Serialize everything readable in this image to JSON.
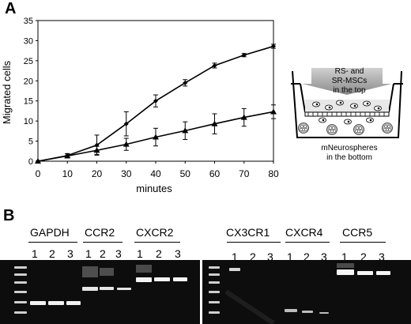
{
  "panel_a": {
    "label": "A"
  },
  "panel_b": {
    "label": "B"
  },
  "chart_data": {
    "type": "line",
    "xlabel": "minutes",
    "ylabel": "Migrated cells",
    "x": [
      0,
      10,
      20,
      30,
      40,
      50,
      60,
      70,
      80
    ],
    "xlim": [
      0,
      80
    ],
    "ylim": [
      0,
      35
    ],
    "xticks": [
      0,
      10,
      20,
      30,
      40,
      50,
      60,
      70,
      80
    ],
    "yticks": [
      0,
      5,
      10,
      15,
      20,
      25,
      30,
      35
    ],
    "grid": false,
    "series": [
      {
        "marker": "diamond",
        "values": [
          0,
          1.4,
          4.0,
          9.3,
          15.0,
          19.5,
          23.8,
          26.4,
          28.6
        ],
        "errors": [
          0,
          0.5,
          2.5,
          3.0,
          1.5,
          0.8,
          0.6,
          0.4,
          0.5
        ]
      },
      {
        "marker": "triangle",
        "values": [
          0,
          1.3,
          2.7,
          4.2,
          6.0,
          7.6,
          9.3,
          10.9,
          12.3
        ],
        "errors": [
          0,
          0.5,
          1.0,
          1.5,
          2.2,
          2.2,
          2.5,
          2.2,
          1.7
        ]
      }
    ]
  },
  "schematic": {
    "top_text_line1": "RS- and",
    "top_text_line2": "SR-MSCs",
    "top_text_line3": "in the top",
    "bottom_text_line1": "mNeurospheres",
    "bottom_text_line2": "in the bottom"
  },
  "gels": {
    "left": {
      "genes": [
        "GAPDH",
        "CCR2",
        "CXCR2"
      ],
      "lanes": [
        "1",
        "2",
        "3",
        "1",
        "2",
        "3",
        "1",
        "2",
        "3"
      ]
    },
    "right": {
      "genes": [
        "CX3CR1",
        "CXCR4",
        "CCR5"
      ],
      "lanes": [
        "1",
        "2",
        "3",
        "1",
        "2",
        "3",
        "1",
        "2",
        "3"
      ]
    }
  }
}
